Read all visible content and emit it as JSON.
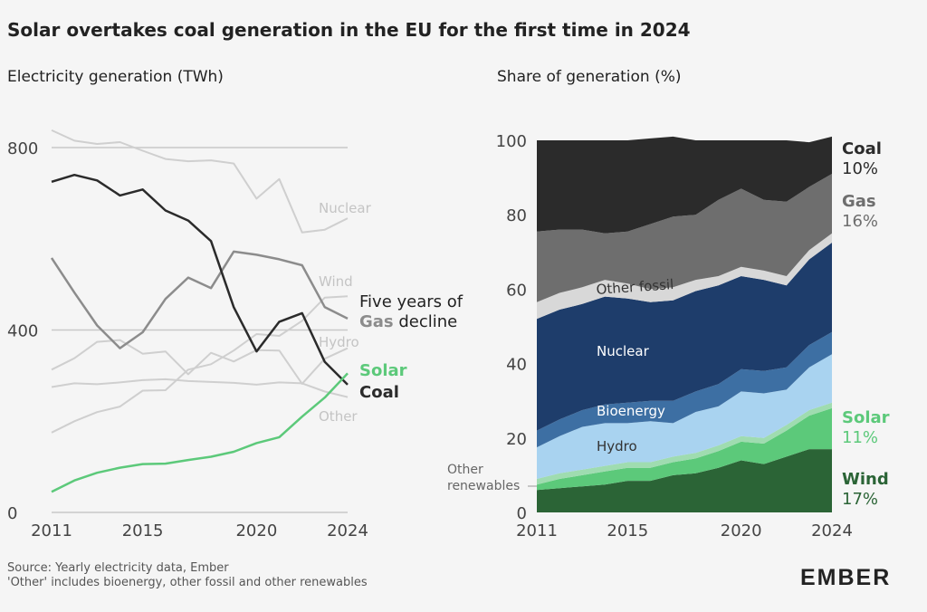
{
  "title": "Solar overtakes coal generation in the EU for the first time in 2024",
  "source_lines": [
    "Source: Yearly electricity data, Ember",
    "'Other' includes bioenergy, other fossil and other renewables"
  ],
  "logo": "EMBER",
  "colors": {
    "coal": "#2b2b2b",
    "gas": "#8c8c8c",
    "solar": "#5cc97a",
    "muted": "#cfcfcf",
    "nuclear": "#1e3d6b",
    "hydro": "#a9d3f0",
    "bioenergy": "#3d6fa3",
    "other_fossil": "#d8d8d8",
    "wind": "#2b6436",
    "other_renewables": "#5cc97a"
  },
  "chart_data": [
    {
      "type": "line",
      "subtitle": "Electricity generation (TWh)",
      "x": [
        2011,
        2012,
        2013,
        2014,
        2015,
        2016,
        2017,
        2018,
        2019,
        2020,
        2021,
        2022,
        2023,
        2024
      ],
      "xticks": [
        2011,
        2015,
        2020,
        2024
      ],
      "yticks": [
        0,
        400,
        800
      ],
      "ylim": [
        0,
        850
      ],
      "grid": true,
      "series": [
        {
          "name": "Nuclear",
          "label": "Nuclear",
          "style": "muted",
          "values": [
            838,
            815,
            808,
            812,
            793,
            775,
            770,
            772,
            765,
            688,
            731,
            614,
            620,
            645
          ]
        },
        {
          "name": "Wind",
          "label": "Wind",
          "style": "muted",
          "values": [
            175,
            200,
            220,
            232,
            267,
            268,
            313,
            325,
            355,
            391,
            387,
            420,
            471,
            474
          ]
        },
        {
          "name": "Hydro",
          "label": "Hydro",
          "style": "muted",
          "values": [
            313,
            338,
            374,
            378,
            348,
            353,
            303,
            350,
            331,
            356,
            355,
            282,
            337,
            360
          ]
        },
        {
          "name": "Other",
          "label": "Other",
          "style": "muted",
          "values": [
            275,
            283,
            281,
            285,
            290,
            292,
            288,
            286,
            284,
            280,
            285,
            283,
            265,
            253
          ]
        },
        {
          "name": "Gas",
          "style": "gas",
          "values": [
            558,
            482,
            410,
            360,
            395,
            468,
            515,
            492,
            572,
            565,
            555,
            542,
            450,
            425
          ]
        },
        {
          "name": "Coal",
          "label": "Coal",
          "style": "coal",
          "values": [
            725,
            740,
            728,
            695,
            708,
            662,
            640,
            595,
            450,
            353,
            418,
            437,
            330,
            280
          ]
        },
        {
          "name": "Solar",
          "label": "Solar",
          "style": "solar",
          "values": [
            45,
            70,
            87,
            98,
            106,
            107,
            115,
            122,
            133,
            152,
            165,
            210,
            252,
            305
          ]
        }
      ],
      "annotation": {
        "line1": "Five years of",
        "bold": "Gas",
        "rest": " decline"
      }
    },
    {
      "type": "area",
      "subtitle": "Share of generation (%)",
      "x": [
        2011,
        2012,
        2013,
        2014,
        2015,
        2016,
        2017,
        2018,
        2019,
        2020,
        2021,
        2022,
        2023,
        2024
      ],
      "xticks": [
        2011,
        2015,
        2020,
        2024
      ],
      "yticks": [
        0,
        20,
        40,
        60,
        80,
        100
      ],
      "ylim": [
        0,
        100
      ],
      "stacked": true,
      "series": [
        {
          "name": "Wind",
          "label": "Wind",
          "share_label": "17%",
          "values": [
            6,
            6.5,
            7,
            7.5,
            8.5,
            8.5,
            10,
            10.5,
            12,
            14,
            13,
            15,
            17,
            17
          ]
        },
        {
          "name": "Solar",
          "label": "Solar",
          "share_label": "11%",
          "values": [
            1.5,
            2.5,
            3,
            3.5,
            3.5,
            3.5,
            3.5,
            4,
            4.5,
            5,
            5.5,
            7,
            9,
            11
          ]
        },
        {
          "name": "Other renewables",
          "label": "Other renewables",
          "values": [
            1.5,
            1.5,
            1.5,
            1.5,
            1.5,
            1.5,
            1.5,
            1.5,
            1.5,
            1.5,
            1.5,
            1.5,
            1.5,
            1.5
          ]
        },
        {
          "name": "Hydro",
          "label": "Hydro",
          "values": [
            8.5,
            10,
            11.5,
            11.5,
            10.5,
            11,
            9,
            11,
            10.5,
            12,
            12,
            9.5,
            11.5,
            13
          ]
        },
        {
          "name": "Bioenergy",
          "label": "Bioenergy",
          "values": [
            4.5,
            4.5,
            4.5,
            5,
            5.5,
            5.5,
            6,
            5.5,
            6,
            6,
            6,
            6,
            6,
            6
          ]
        },
        {
          "name": "Nuclear",
          "label": "Nuclear",
          "values": [
            30,
            29.5,
            28.5,
            29,
            28,
            26.5,
            27,
            27,
            26.5,
            25,
            24.5,
            22,
            23,
            24
          ]
        },
        {
          "name": "Other fossil",
          "label": "Other fossil",
          "values": [
            4.5,
            4.5,
            4.5,
            4.5,
            4,
            3.5,
            3.5,
            3,
            2.5,
            2.5,
            2.5,
            2.5,
            2.5,
            2.5
          ]
        },
        {
          "name": "Gas",
          "label": "Gas",
          "share_label": "16%",
          "values": [
            19,
            17,
            15.5,
            12.5,
            14,
            17.5,
            19,
            17.5,
            20.5,
            21,
            19,
            20,
            17,
            16
          ]
        },
        {
          "name": "Coal",
          "label": "Coal",
          "share_label": "10%",
          "values": [
            24.5,
            24,
            24,
            25,
            24.5,
            23,
            21.5,
            20,
            16,
            13,
            16,
            16.5,
            12,
            10
          ]
        }
      ]
    }
  ]
}
